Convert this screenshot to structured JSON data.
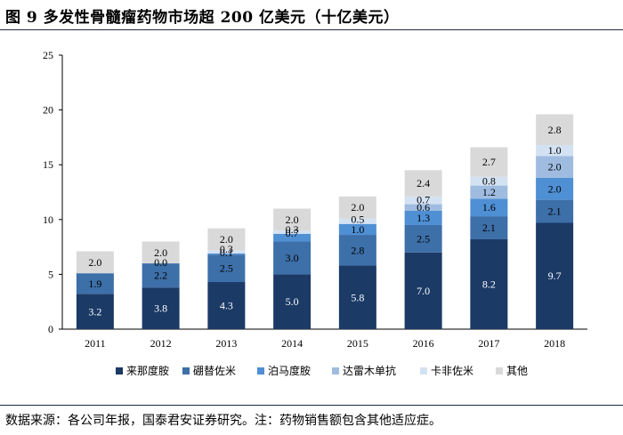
{
  "title": "图 9  多发性骨髓瘤药物市场超 200 亿美元（十亿美元）",
  "source": "数据来源：各公司年报，国泰君安证券研究。注：药物销售额包含其他适应症。",
  "chart_data": {
    "type": "bar",
    "stacked": true,
    "categories": [
      "2011",
      "2012",
      "2013",
      "2014",
      "2015",
      "2016",
      "2017",
      "2018"
    ],
    "series": [
      {
        "name": "来那度胺",
        "color": "#1b3a66",
        "values": [
          3.2,
          3.8,
          4.3,
          5.0,
          5.8,
          7.0,
          8.2,
          9.7
        ]
      },
      {
        "name": "硼替佐米",
        "color": "#3d6fa8",
        "values": [
          1.9,
          2.2,
          2.5,
          3.0,
          2.8,
          2.5,
          2.1,
          2.1
        ]
      },
      {
        "name": "泊马度胺",
        "color": "#4f8fd4",
        "values": [
          0.0,
          0.0,
          0.1,
          0.7,
          1.0,
          1.3,
          1.6,
          2.0
        ]
      },
      {
        "name": "达雷木单抗",
        "color": "#9fbce0",
        "values": [
          0.0,
          0.0,
          0.0,
          0.0,
          0.0,
          0.6,
          1.2,
          2.0
        ]
      },
      {
        "name": "卡非佐米",
        "color": "#d3e2f2",
        "values": [
          0.0,
          0.0,
          0.3,
          0.3,
          0.5,
          0.7,
          0.8,
          1.0
        ]
      },
      {
        "name": "其他",
        "color": "#d9d9d9",
        "values": [
          2.0,
          2.0,
          2.0,
          2.0,
          2.0,
          2.4,
          2.7,
          2.8
        ]
      }
    ],
    "labels": [
      [
        "3.2",
        "3.8",
        "4.3",
        "5.0",
        "5.8",
        "7.0",
        "8.2",
        "9.7"
      ],
      [
        "1.9",
        "2.2",
        "2.5",
        "3.0",
        "2.8",
        "2.5",
        "2.1",
        "2.1"
      ],
      [
        null,
        "0.0",
        "0.1",
        "0.7",
        "1.0",
        "1.3",
        "1.6",
        "2.0"
      ],
      [
        null,
        null,
        null,
        null,
        null,
        "0.6",
        "1.2",
        "2.0"
      ],
      [
        null,
        null,
        "0.3",
        "0.3",
        "0.5",
        "0.7",
        "0.8",
        "1.0"
      ],
      [
        "2.0",
        "2.0",
        "2.0",
        "2.0",
        "2.0",
        "2.4",
        "2.7",
        "2.8"
      ]
    ],
    "ylim": [
      0,
      25
    ],
    "yticks": [
      0,
      5,
      10,
      15,
      20,
      25
    ],
    "grid": false,
    "legend_position": "bottom"
  }
}
